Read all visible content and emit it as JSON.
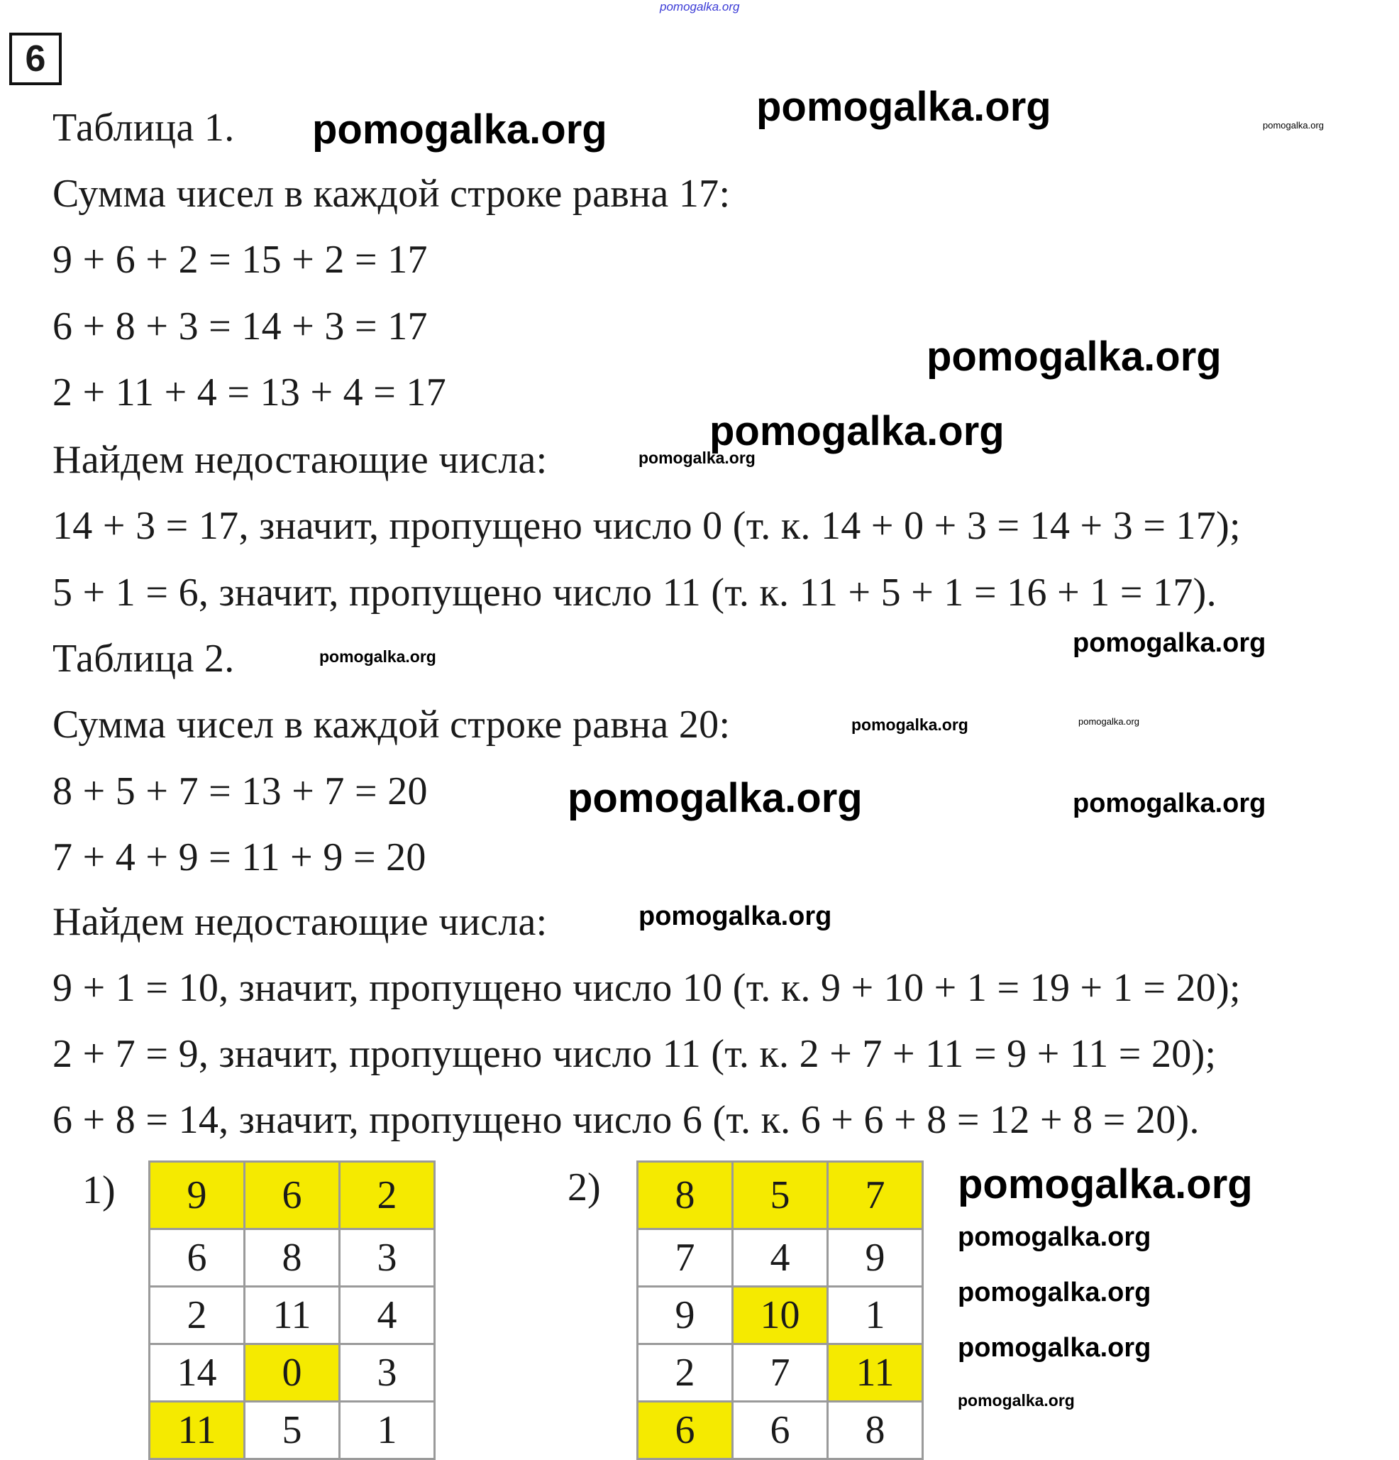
{
  "header_watermark": "pomogalka.org",
  "task_number": "6",
  "lines": [
    "Таблица 1.",
    "Сумма чисел в каждой строке равна 17:",
    "9 + 6 + 2 = 15 + 2 = 17",
    "6 + 8 + 3 = 14 + 3 = 17",
    "2 + 11 + 4 = 13 + 4 = 17",
    "Найдем недостающие числа:",
    "14 + 3 = 17, значит, пропущено число 0 (т. к. 14 + 0 + 3 = 14 + 3 = 17);",
    "5 + 1 = 6, значит, пропущено число 11 (т. к. 11 + 5 + 1 = 16 + 1 = 17).",
    "Таблица 2.",
    "Сумма чисел в каждой строке равна 20:",
    "8 + 5 + 7 = 13 + 7 = 20",
    "7 + 4 + 9 = 11 + 9 = 20",
    "Найдем недостающие числа:",
    "9 + 1 = 10, значит, пропущено число 10 (т. к. 9 + 10 + 1 = 19 + 1 = 20);",
    "2 + 7 = 9, значит, пропущено число 11 (т. к. 2 + 7 + 11 = 9 + 11 = 20);",
    "6 + 8 = 14, значит, пропущено число 6 (т. к. 6 + 6 + 8 = 12 + 8 = 20)."
  ],
  "watermark": "pomogalka.org",
  "highlight_color": "#f5ea00",
  "table1": {
    "label": "1)",
    "rows": [
      [
        "9",
        "6",
        "2"
      ],
      [
        "6",
        "8",
        "3"
      ],
      [
        "2",
        "11",
        "4"
      ],
      [
        "14",
        "0",
        "3"
      ],
      [
        "11",
        "5",
        "1"
      ]
    ],
    "highlighted": [
      [
        0,
        0
      ],
      [
        0,
        1
      ],
      [
        0,
        2
      ],
      [
        3,
        1
      ],
      [
        4,
        0
      ]
    ]
  },
  "table2": {
    "label": "2)",
    "rows": [
      [
        "8",
        "5",
        "7"
      ],
      [
        "7",
        "4",
        "9"
      ],
      [
        "9",
        "10",
        "1"
      ],
      [
        "2",
        "7",
        "11"
      ],
      [
        "6",
        "6",
        "8"
      ]
    ],
    "highlighted": [
      [
        0,
        0
      ],
      [
        0,
        1
      ],
      [
        0,
        2
      ],
      [
        2,
        1
      ],
      [
        3,
        2
      ],
      [
        4,
        0
      ]
    ]
  }
}
